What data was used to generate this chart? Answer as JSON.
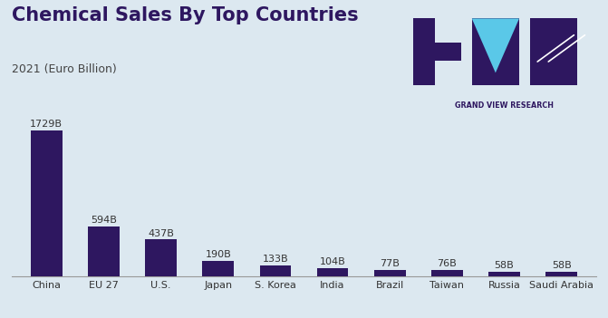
{
  "title": "Chemical Sales By Top Countries",
  "subtitle": "2021 (Euro Billion)",
  "categories": [
    "China",
    "EU 27",
    "U.S.",
    "Japan",
    "S. Korea",
    "India",
    "Brazil",
    "Taiwan",
    "Russia",
    "Saudi Arabia"
  ],
  "values": [
    1729,
    594,
    437,
    190,
    133,
    104,
    77,
    76,
    58,
    58
  ],
  "labels": [
    "1729B",
    "594B",
    "437B",
    "190B",
    "133B",
    "104B",
    "77B",
    "76B",
    "58B",
    "58B"
  ],
  "bar_color": "#2e1760",
  "background_color": "#dce8f0",
  "title_color": "#2e1760",
  "subtitle_color": "#444444",
  "label_color": "#333333",
  "ylim": [
    0,
    1950
  ],
  "title_fontsize": 15,
  "subtitle_fontsize": 9,
  "label_fontsize": 8,
  "tick_fontsize": 8,
  "brand_text": "GRAND VIEW RESEARCH",
  "brand_color": "#2e1760",
  "logo_dark": "#2e1760",
  "logo_cyan": "#5ac8e8"
}
